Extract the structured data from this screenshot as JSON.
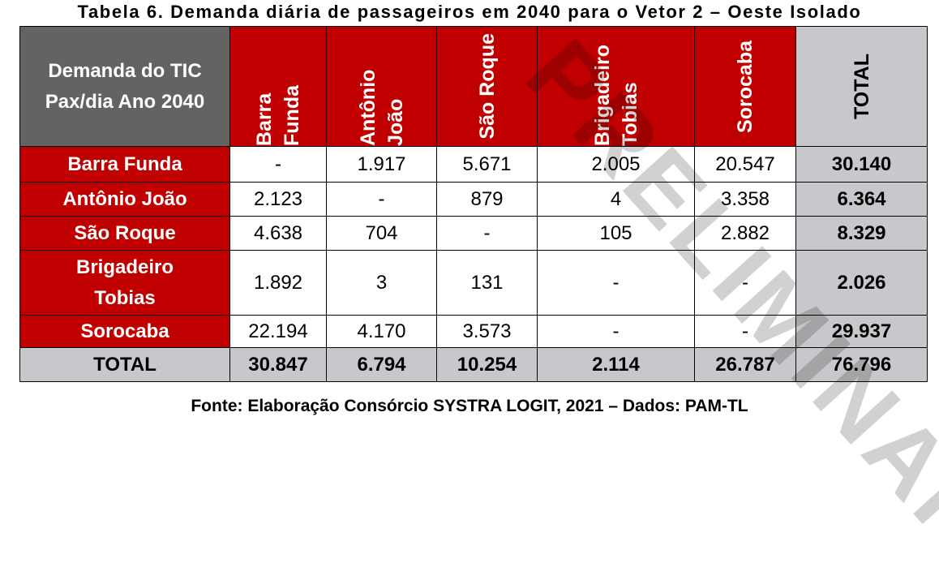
{
  "title": "Tabela 6. Demanda diária de passageiros em 2040 para o Vetor 2 – Oeste Isolado",
  "corner_label": "Demanda do TIC Pax/dia Ano 2040",
  "columns": [
    "Barra Funda",
    "Antônio João",
    "São Roque",
    "Brigadeiro Tobias",
    "Sorocaba",
    "TOTAL"
  ],
  "rows": [
    {
      "label": "Barra Funda",
      "values": [
        "-",
        "1.917",
        "5.671",
        "2.005",
        "20.547"
      ],
      "total": "30.140"
    },
    {
      "label": "Antônio João",
      "values": [
        "2.123",
        "-",
        "879",
        "4",
        "3.358"
      ],
      "total": "6.364"
    },
    {
      "label": "São Roque",
      "values": [
        "4.638",
        "704",
        "-",
        "105",
        "2.882"
      ],
      "total": "8.329"
    },
    {
      "label": "Brigadeiro Tobias",
      "values": [
        "1.892",
        "3",
        "131",
        "-",
        "-"
      ],
      "total": "2.026"
    },
    {
      "label": "Sorocaba",
      "values": [
        "22.194",
        "4.170",
        "3.573",
        "-",
        "-"
      ],
      "total": "29.937"
    }
  ],
  "total_row": {
    "label": "TOTAL",
    "values": [
      "30.847",
      "6.794",
      "10.254",
      "2.114",
      "26.787"
    ],
    "total": "76.796"
  },
  "source": "Fonte: Elaboração Consórcio SYSTRA LOGIT, 2021 – Dados: PAM-TL",
  "watermark": "PRELIMINAR",
  "colors": {
    "header_red": "#c00000",
    "corner_gray": "#636363",
    "total_gray": "#c8c8cc"
  }
}
